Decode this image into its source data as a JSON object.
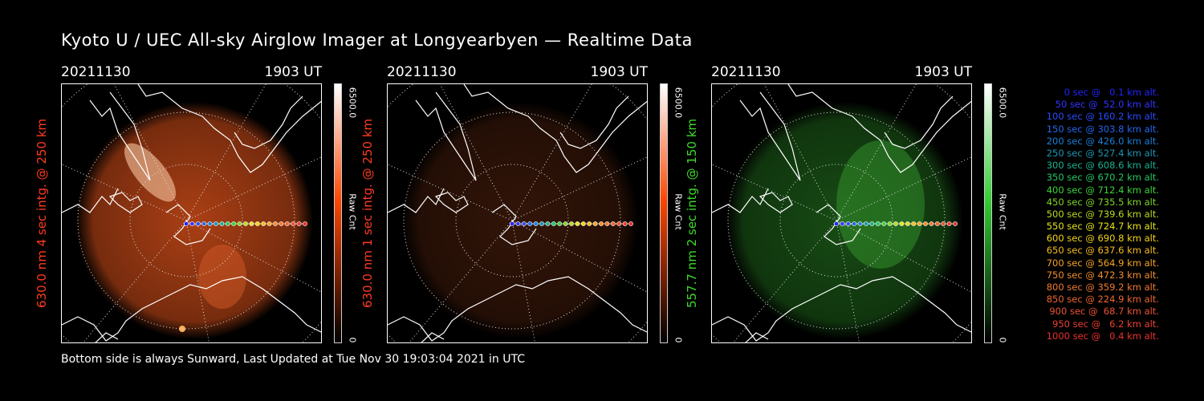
{
  "title": "Kyoto U / UEC All-sky Airglow Imager at Longyearbyen — Realtime Data",
  "footer": "Bottom side is always Sunward, Last Updated at Tue Nov 30 19:03:04 2021 in UTC",
  "panels": [
    {
      "date": "20211130",
      "time": "1903 UT",
      "ylabel": "630.0 nm 4 sec intg. @ 250 km",
      "ylabel_color": "#ff3b1f",
      "cbar_max": "6500.0",
      "cbar_min": "0",
      "cbar_unit": "Raw Cnt",
      "cbar_color": "#ff4500",
      "emission_color": "#c84a18",
      "intensity": 0.85
    },
    {
      "date": "20211130",
      "time": "1903 UT",
      "ylabel": "630.0 nm 1 sec intg. @ 250 km",
      "ylabel_color": "#ff3b1f",
      "cbar_max": "6500.0",
      "cbar_min": "0",
      "cbar_unit": "Raw Cnt",
      "cbar_color": "#ff4500",
      "emission_color": "#a8451c",
      "intensity": 0.3
    },
    {
      "date": "20211130",
      "time": "1903 UT",
      "ylabel": "557.7 nm 2 sec intg. @ 150 km",
      "ylabel_color": "#3ddc2a",
      "cbar_max": "6500.0",
      "cbar_min": "0",
      "cbar_unit": "Raw Cnt",
      "cbar_color": "#32cd32",
      "emission_color": "#2a8a25",
      "intensity": 0.55
    }
  ],
  "legend": [
    {
      "text": "0 sec @   0.1 km alt.",
      "color": "#2222ff"
    },
    {
      "text": "50 sec @  52.0 km alt.",
      "color": "#3333ff"
    },
    {
      "text": "100 sec @ 160.2 km alt.",
      "color": "#2a4cff"
    },
    {
      "text": "150 sec @ 303.8 km alt.",
      "color": "#2266ee"
    },
    {
      "text": "200 sec @ 426.0 km alt.",
      "color": "#1a7fd8"
    },
    {
      "text": "250 sec @ 527.4 km alt.",
      "color": "#1c96b4"
    },
    {
      "text": "300 sec @ 608.6 km alt.",
      "color": "#19b290"
    },
    {
      "text": "350 sec @ 670.2 km alt.",
      "color": "#22c862"
    },
    {
      "text": "400 sec @ 712.4 km alt.",
      "color": "#3ad43a"
    },
    {
      "text": "450 sec @ 735.5 km alt.",
      "color": "#7ed62a"
    },
    {
      "text": "500 sec @ 739.6 km alt.",
      "color": "#b8dc1e"
    },
    {
      "text": "550 sec @ 724.7 km alt.",
      "color": "#e4e41a"
    },
    {
      "text": "600 sec @ 690.8 km alt.",
      "color": "#f4d41a"
    },
    {
      "text": "650 sec @ 637.6 km alt.",
      "color": "#f8bc1e"
    },
    {
      "text": "700 sec @ 564.9 km alt.",
      "color": "#f6a424"
    },
    {
      "text": "750 sec @ 472.3 km alt.",
      "color": "#f48e2a"
    },
    {
      "text": "800 sec @ 359.2 km alt.",
      "color": "#f27a2e"
    },
    {
      "text": "850 sec @ 224.9 km alt.",
      "color": "#f06630"
    },
    {
      "text": "900 sec @  68.7 km alt.",
      "color": "#ee5232"
    },
    {
      "text": "950 sec @   6.2 km alt.",
      "color": "#ec4030"
    },
    {
      "text": "1000 sec @   0.4 km alt.",
      "color": "#ea302e"
    }
  ]
}
